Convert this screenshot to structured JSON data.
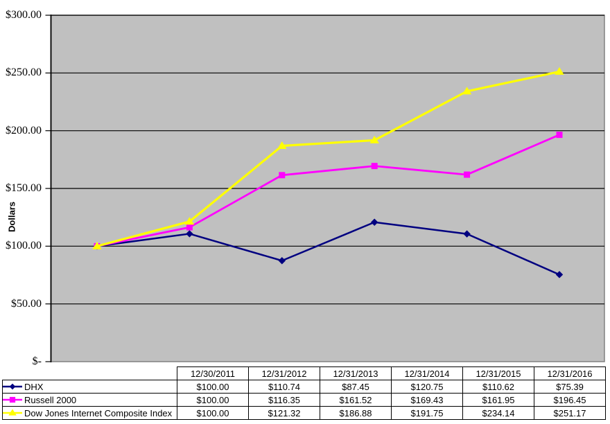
{
  "chart_data": {
    "type": "line",
    "title": "",
    "ylabel": "Dollars",
    "ylim": [
      0,
      300
    ],
    "y_tick_step": 50,
    "y_tick_labels": [
      "$300.00",
      "$250.00",
      "$200.00",
      "$150.00",
      "$100.00",
      "$50.00",
      "$-"
    ],
    "grid": "horizontal",
    "plot_bg_color": "#C0C0C0",
    "plot_border_color": "#808080",
    "gridline_color": "#000000",
    "legend_position": "table-rows-below-chart",
    "categories": [
      "12/30/2011",
      "12/31/2012",
      "12/31/2013",
      "12/31/2014",
      "12/31/2015",
      "12/31/2016"
    ],
    "series": [
      {
        "name": "DHX",
        "color": "#000080",
        "marker": "diamond",
        "values": [
          100.0,
          110.74,
          87.45,
          120.75,
          110.62,
          75.39
        ]
      },
      {
        "name": "Russell 2000",
        "color": "#FF00FF",
        "marker": "square",
        "values": [
          100.0,
          116.35,
          161.52,
          169.43,
          161.95,
          196.45
        ]
      },
      {
        "name": "Dow Jones Internet Composite Index",
        "color": "#FFFF00",
        "marker": "triangle",
        "values": [
          100.0,
          121.32,
          186.88,
          191.75,
          234.14,
          251.17
        ]
      }
    ]
  },
  "table": {
    "column_headers": [
      "12/30/2011",
      "12/31/2012",
      "12/31/2013",
      "12/31/2014",
      "12/31/2015",
      "12/31/2016"
    ],
    "rows": [
      {
        "label": "DHX",
        "cells": [
          "$100.00",
          "$110.74",
          "$87.45",
          "$120.75",
          "$110.62",
          "$75.39"
        ]
      },
      {
        "label": "Russell 2000",
        "cells": [
          "$100.00",
          "$116.35",
          "$161.52",
          "$169.43",
          "$161.95",
          "$196.45"
        ]
      },
      {
        "label": "Dow Jones Internet Composite Index",
        "cells": [
          "$100.00",
          "$121.32",
          "$186.88",
          "$191.75",
          "$234.14",
          "$251.17"
        ]
      }
    ]
  }
}
